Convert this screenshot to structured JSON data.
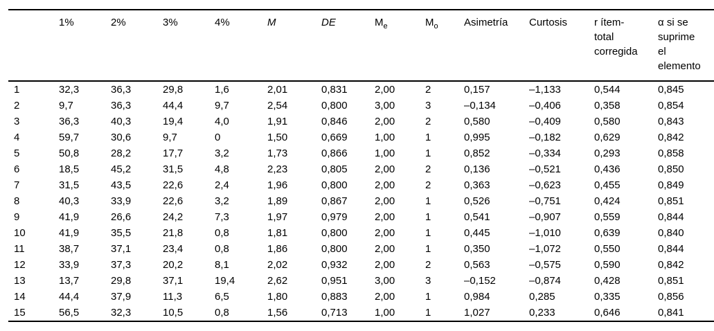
{
  "table": {
    "columns": [
      {
        "id": "item",
        "label": ""
      },
      {
        "id": "pct-1",
        "label": "1%"
      },
      {
        "id": "pct-2",
        "label": "2%"
      },
      {
        "id": "pct-3",
        "label": "3%"
      },
      {
        "id": "pct-4",
        "label": "4%"
      },
      {
        "id": "media",
        "label": "M",
        "italic": true
      },
      {
        "id": "desviacion",
        "label": "DE",
        "italic": true
      },
      {
        "id": "mediana",
        "label": "M",
        "subscript": "e"
      },
      {
        "id": "moda",
        "label": "M",
        "subscript": "o"
      },
      {
        "id": "asimetria",
        "label": "Asimetría"
      },
      {
        "id": "curtosis",
        "label": "Curtosis"
      },
      {
        "id": "r-item-total",
        "label": "r ítem-total corregida",
        "lines": [
          "r ítem-",
          "total",
          "corregida"
        ]
      },
      {
        "id": "alfa-si-suprime",
        "label": "α si se suprime el elemento",
        "lines": [
          "α si se",
          "suprime",
          "el",
          "elemento"
        ]
      }
    ],
    "rows": [
      [
        "1",
        "32,3",
        "36,3",
        "29,8",
        "1,6",
        "2,01",
        "0,831",
        "2,00",
        "2",
        "0,157",
        "–1,133",
        "0,544",
        "0,845"
      ],
      [
        "2",
        "9,7",
        "36,3",
        "44,4",
        "9,7",
        "2,54",
        "0,800",
        "3,00",
        "3",
        "–0,134",
        "–0,406",
        "0,358",
        "0,854"
      ],
      [
        "3",
        "36,3",
        "40,3",
        "19,4",
        "4,0",
        "1,91",
        "0,846",
        "2,00",
        "2",
        "0,580",
        "–0,409",
        "0,580",
        "0,843"
      ],
      [
        "4",
        "59,7",
        "30,6",
        "9,7",
        "0",
        "1,50",
        "0,669",
        "1,00",
        "1",
        "0,995",
        "–0,182",
        "0,629",
        "0,842"
      ],
      [
        "5",
        "50,8",
        "28,2",
        "17,7",
        "3,2",
        "1,73",
        "0,866",
        "1,00",
        "1",
        "0,852",
        "–0,334",
        "0,293",
        "0,858"
      ],
      [
        "6",
        "18,5",
        "45,2",
        "31,5",
        "4,8",
        "2,23",
        "0,805",
        "2,00",
        "2",
        "0,136",
        "–0,521",
        "0,436",
        "0,850"
      ],
      [
        "7",
        "31,5",
        "43,5",
        "22,6",
        "2,4",
        "1,96",
        "0,800",
        "2,00",
        "2",
        "0,363",
        "–0,623",
        "0,455",
        "0,849"
      ],
      [
        "8",
        "40,3",
        "33,9",
        "22,6",
        "3,2",
        "1,89",
        "0,867",
        "2,00",
        "1",
        "0,526",
        "–0,751",
        "0,424",
        "0,851"
      ],
      [
        "9",
        "41,9",
        "26,6",
        "24,2",
        "7,3",
        "1,97",
        "0,979",
        "2,00",
        "1",
        "0,541",
        "–0,907",
        "0,559",
        "0,844"
      ],
      [
        "10",
        "41,9",
        "35,5",
        "21,8",
        "0,8",
        "1,81",
        "0,800",
        "2,00",
        "1",
        "0,445",
        "–1,010",
        "0,639",
        "0,840"
      ],
      [
        "11",
        "38,7",
        "37,1",
        "23,4",
        "0,8",
        "1,86",
        "0,800",
        "2,00",
        "1",
        "0,350",
        "–1,072",
        "0,550",
        "0,844"
      ],
      [
        "12",
        "33,9",
        "37,3",
        "20,2",
        "8,1",
        "2,02",
        "0,932",
        "2,00",
        "2",
        "0,563",
        "–0,575",
        "0,590",
        "0,842"
      ],
      [
        "13",
        "13,7",
        "29,8",
        "37,1",
        "19,4",
        "2,62",
        "0,951",
        "3,00",
        "3",
        "–0,152",
        "–0,874",
        "0,428",
        "0,851"
      ],
      [
        "14",
        "44,4",
        "37,9",
        "11,3",
        "6,5",
        "1,80",
        "0,883",
        "2,00",
        "1",
        "0,984",
        "0,285",
        "0,335",
        "0,856"
      ],
      [
        "15",
        "56,5",
        "32,3",
        "10,5",
        "0,8",
        "1,56",
        "0,713",
        "1,00",
        "1",
        "1,027",
        "0,233",
        "0,646",
        "0,841"
      ]
    ]
  }
}
